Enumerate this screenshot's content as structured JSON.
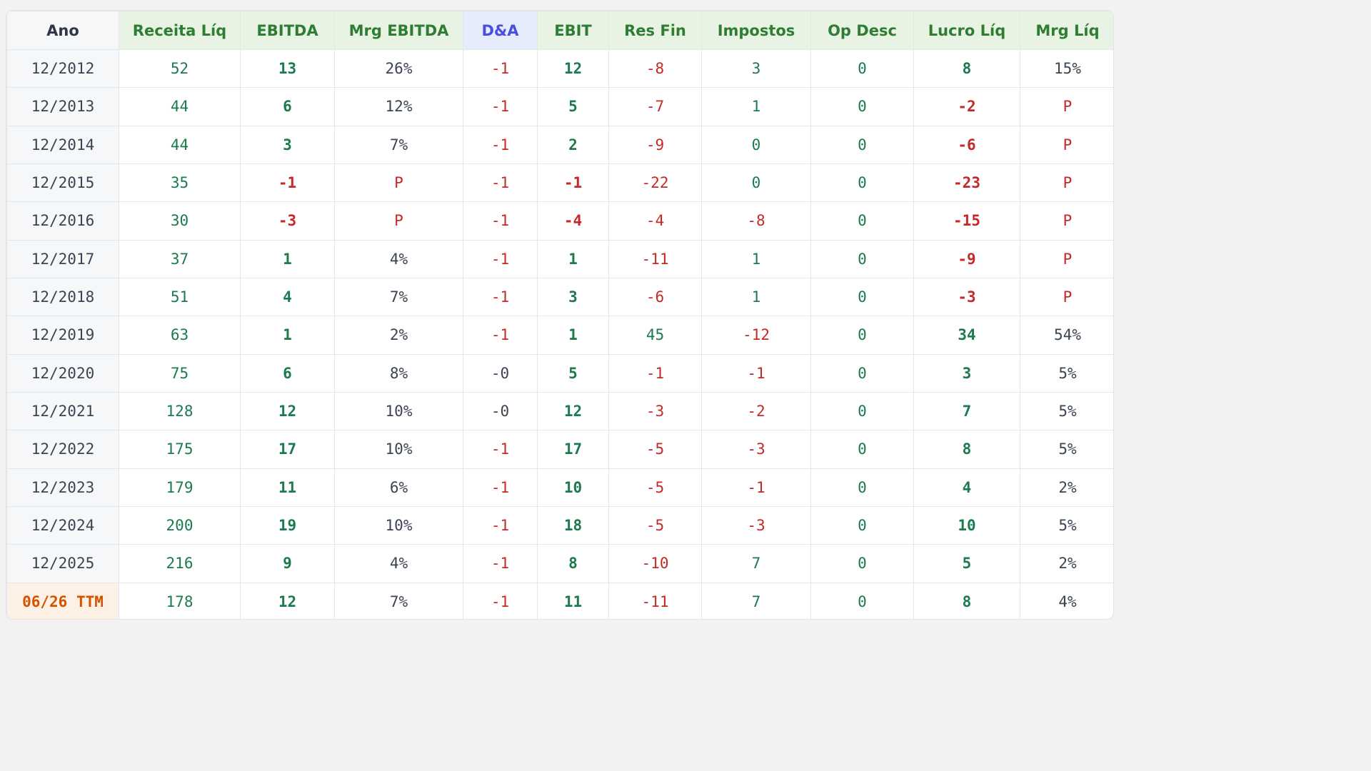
{
  "headers": [
    "Ano",
    "Receita Líq",
    "EBITDA",
    "Mrg EBITDA",
    "D&A",
    "EBIT",
    "Res Fin",
    "Impostos",
    "Op Desc",
    "Lucro Líq",
    "Mrg Líq"
  ],
  "rows": [
    [
      "12/2012",
      "52",
      "13",
      "26%",
      "-1",
      "12",
      "-8",
      "3",
      "0",
      "8",
      "15%"
    ],
    [
      "12/2013",
      "44",
      "6",
      "12%",
      "-1",
      "5",
      "-7",
      "1",
      "0",
      "-2",
      "P"
    ],
    [
      "12/2014",
      "44",
      "3",
      "7%",
      "-1",
      "2",
      "-9",
      "0",
      "0",
      "-6",
      "P"
    ],
    [
      "12/2015",
      "35",
      "-1",
      "P",
      "-1",
      "-1",
      "-22",
      "0",
      "0",
      "-23",
      "P"
    ],
    [
      "12/2016",
      "30",
      "-3",
      "P",
      "-1",
      "-4",
      "-4",
      "-8",
      "0",
      "-15",
      "P"
    ],
    [
      "12/2017",
      "37",
      "1",
      "4%",
      "-1",
      "1",
      "-11",
      "1",
      "0",
      "-9",
      "P"
    ],
    [
      "12/2018",
      "51",
      "4",
      "7%",
      "-1",
      "3",
      "-6",
      "1",
      "0",
      "-3",
      "P"
    ],
    [
      "12/2019",
      "63",
      "1",
      "2%",
      "-1",
      "1",
      "45",
      "-12",
      "0",
      "34",
      "54%"
    ],
    [
      "12/2020",
      "75",
      "6",
      "8%",
      "-0",
      "5",
      "-1",
      "-1",
      "0",
      "3",
      "5%"
    ],
    [
      "12/2021",
      "128",
      "12",
      "10%",
      "-0",
      "12",
      "-3",
      "-2",
      "0",
      "7",
      "5%"
    ],
    [
      "12/2022",
      "175",
      "17",
      "10%",
      "-1",
      "17",
      "-5",
      "-3",
      "0",
      "8",
      "5%"
    ],
    [
      "12/2023",
      "179",
      "11",
      "6%",
      "-1",
      "10",
      "-5",
      "-1",
      "0",
      "4",
      "2%"
    ],
    [
      "12/2024",
      "200",
      "19",
      "10%",
      "-1",
      "18",
      "-5",
      "-3",
      "0",
      "10",
      "5%"
    ],
    [
      "12/2025",
      "216",
      "9",
      "4%",
      "-1",
      "8",
      "-10",
      "7",
      "0",
      "5",
      "2%"
    ],
    [
      "06/26 TTM",
      "178",
      "12",
      "7%",
      "-1",
      "11",
      "-11",
      "7",
      "0",
      "8",
      "4%"
    ]
  ],
  "colors": {
    "positive": "#1b7a4e",
    "negative": "#c62828",
    "neutral": "#3a4452",
    "ttm": "#d35400",
    "header_green": "#2e7d32",
    "header_da": "#4a4ee0"
  }
}
